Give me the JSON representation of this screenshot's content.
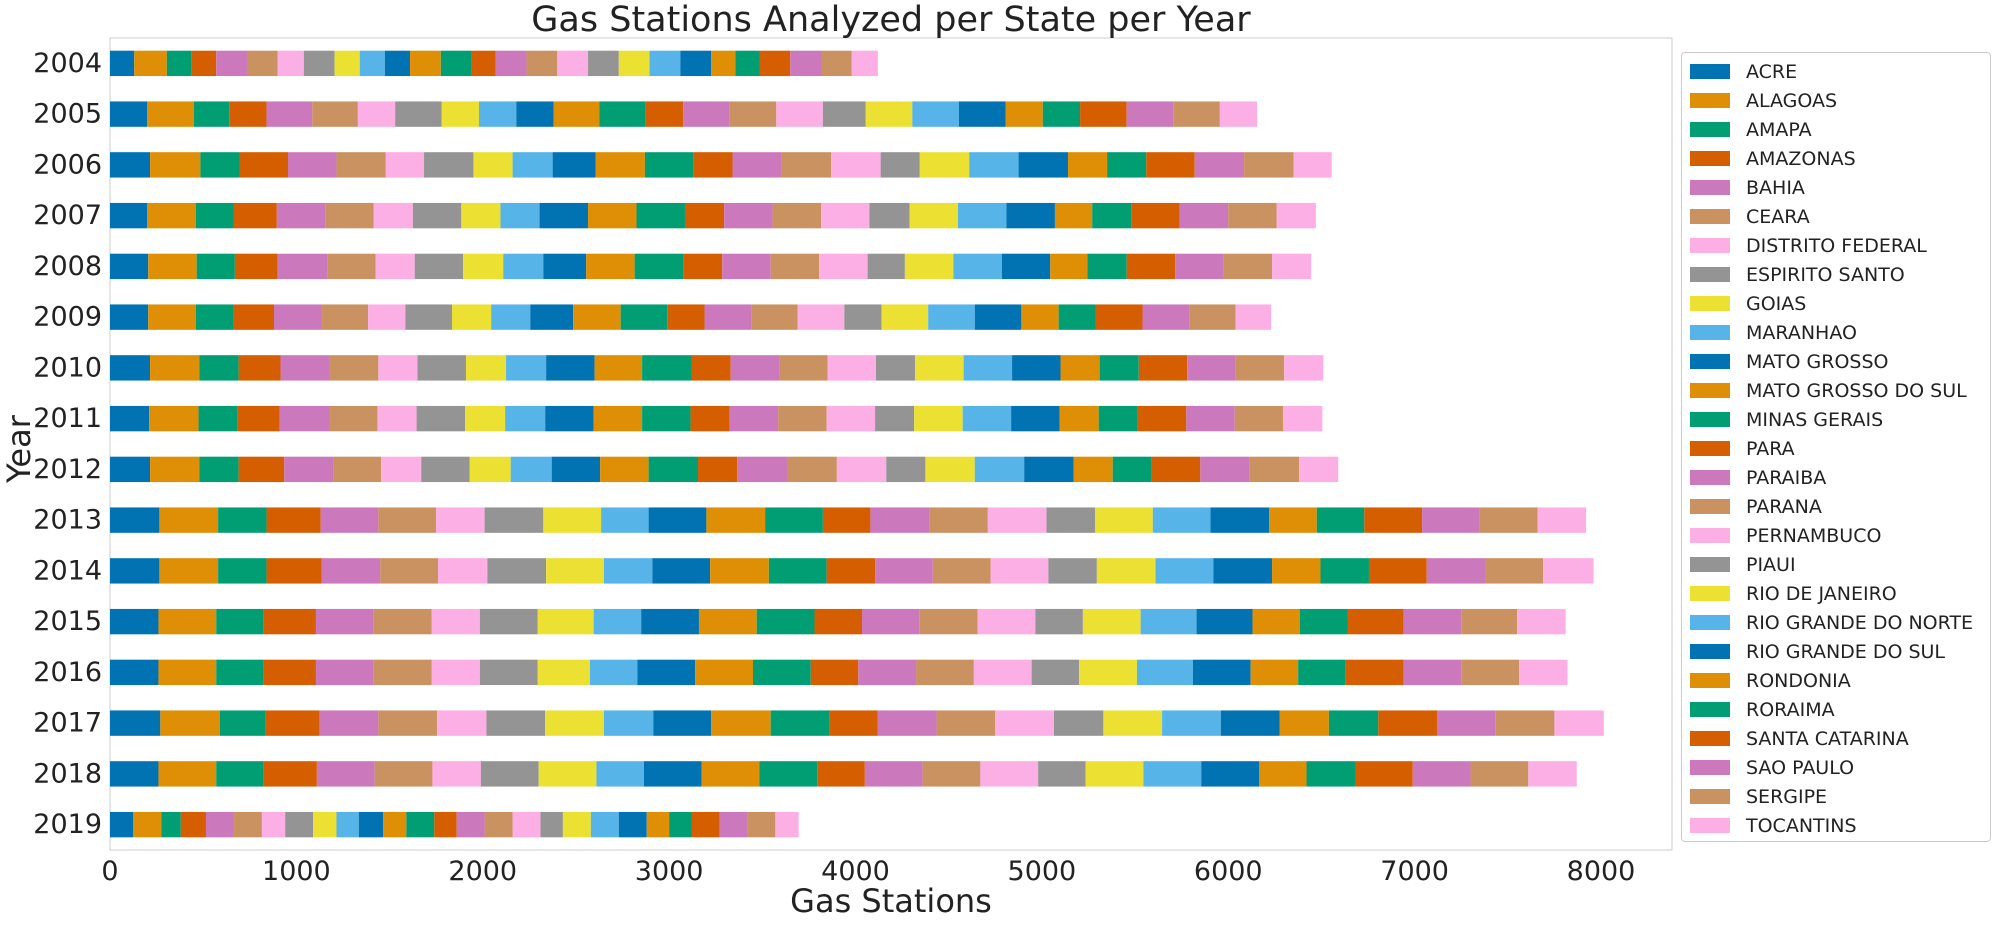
{
  "chart_data": {
    "type": "bar",
    "orientation": "horizontal",
    "stacked": true,
    "title": "Gas Stations Analyzed per State per Year",
    "xlabel": "Gas Stations",
    "ylabel": "Year",
    "xlim": [
      0,
      8400
    ],
    "x_ticks": [
      "0",
      "1000",
      "2000",
      "3000",
      "4000",
      "5000",
      "6000",
      "7000",
      "8000"
    ],
    "grid": false,
    "legend_position": "right",
    "categories": [
      "2004",
      "2005",
      "2006",
      "2007",
      "2008",
      "2009",
      "2010",
      "2011",
      "2012",
      "2013",
      "2014",
      "2015",
      "2016",
      "2017",
      "2018",
      "2019"
    ],
    "series": [
      {
        "name": "ACRE",
        "color": "#0173b2",
        "values": [
          130,
          200,
          215,
          200,
          205,
          205,
          215,
          210,
          215,
          265,
          265,
          260,
          260,
          270,
          260,
          125
        ]
      },
      {
        "name": "ALAGOAS",
        "color": "#de8f05",
        "values": [
          175,
          250,
          270,
          260,
          260,
          255,
          265,
          265,
          265,
          315,
          315,
          310,
          310,
          320,
          310,
          150
        ]
      },
      {
        "name": "AMAPA",
        "color": "#029e73",
        "values": [
          130,
          190,
          210,
          205,
          205,
          200,
          210,
          210,
          210,
          260,
          260,
          255,
          255,
          245,
          255,
          105
        ]
      },
      {
        "name": "AMAZONAS",
        "color": "#d55e00",
        "values": [
          135,
          200,
          260,
          230,
          230,
          220,
          225,
          225,
          245,
          290,
          295,
          280,
          280,
          290,
          285,
          135
        ]
      },
      {
        "name": "BAHIA",
        "color": "#cc78bc",
        "values": [
          165,
          245,
          260,
          260,
          265,
          255,
          265,
          265,
          265,
          310,
          315,
          310,
          310,
          315,
          310,
          150
        ]
      },
      {
        "name": "CEARA",
        "color": "#ca9161",
        "values": [
          165,
          245,
          265,
          260,
          260,
          250,
          260,
          260,
          255,
          310,
          310,
          310,
          310,
          315,
          310,
          150
        ]
      },
      {
        "name": "DISTRITO FEDERAL",
        "color": "#fbafe4",
        "values": [
          140,
          200,
          205,
          210,
          210,
          200,
          210,
          210,
          215,
          260,
          265,
          260,
          260,
          265,
          260,
          125
        ]
      },
      {
        "name": "ESPIRITO SANTO",
        "color": "#949494",
        "values": [
          165,
          250,
          265,
          260,
          260,
          250,
          260,
          260,
          260,
          315,
          315,
          310,
          310,
          315,
          310,
          150
        ]
      },
      {
        "name": "GOIAS",
        "color": "#ece133",
        "values": [
          135,
          200,
          210,
          210,
          215,
          210,
          215,
          215,
          220,
          310,
          310,
          300,
          280,
          315,
          310,
          125
        ]
      },
      {
        "name": "MARANHAO",
        "color": "#56b4e9",
        "values": [
          135,
          200,
          215,
          210,
          215,
          210,
          215,
          215,
          220,
          255,
          260,
          255,
          255,
          265,
          255,
          120
        ]
      },
      {
        "name": "MATO GROSSO",
        "color": "#0173b2",
        "values": [
          135,
          200,
          230,
          260,
          230,
          230,
          260,
          260,
          260,
          310,
          310,
          310,
          310,
          310,
          310,
          130
        ]
      },
      {
        "name": "MATO GROSSO DO SUL",
        "color": "#de8f05",
        "values": [
          165,
          245,
          265,
          260,
          260,
          255,
          255,
          260,
          260,
          315,
          315,
          310,
          310,
          320,
          310,
          125
        ]
      },
      {
        "name": "MINAS GERAIS",
        "color": "#029e73",
        "values": [
          165,
          250,
          260,
          260,
          260,
          250,
          265,
          260,
          265,
          310,
          310,
          310,
          310,
          315,
          310,
          150
        ]
      },
      {
        "name": "PARA",
        "color": "#d55e00",
        "values": [
          130,
          200,
          210,
          210,
          210,
          200,
          210,
          210,
          210,
          255,
          260,
          255,
          255,
          260,
          255,
          120
        ]
      },
      {
        "name": "PARAIBA",
        "color": "#cc78bc",
        "values": [
          165,
          250,
          265,
          260,
          260,
          250,
          260,
          260,
          270,
          315,
          310,
          310,
          310,
          315,
          310,
          150
        ]
      },
      {
        "name": "PARANA",
        "color": "#ca9161",
        "values": [
          165,
          250,
          265,
          260,
          260,
          250,
          260,
          260,
          265,
          315,
          310,
          310,
          310,
          315,
          310,
          150
        ]
      },
      {
        "name": "PERNAMBUCO",
        "color": "#fbafe4",
        "values": [
          165,
          250,
          265,
          260,
          260,
          250,
          260,
          260,
          265,
          315,
          310,
          310,
          310,
          315,
          310,
          150
        ]
      },
      {
        "name": "PIAUI",
        "color": "#949494",
        "values": [
          165,
          230,
          210,
          215,
          200,
          200,
          210,
          210,
          210,
          260,
          260,
          255,
          255,
          265,
          255,
          120
        ]
      },
      {
        "name": "RIO DE JANEIRO",
        "color": "#ece133",
        "values": [
          165,
          250,
          265,
          260,
          260,
          250,
          260,
          260,
          265,
          310,
          315,
          310,
          310,
          315,
          310,
          150
        ]
      },
      {
        "name": "RIO GRANDE DO NORTE",
        "color": "#56b4e9",
        "values": [
          165,
          250,
          265,
          260,
          260,
          250,
          260,
          260,
          265,
          310,
          310,
          300,
          300,
          315,
          310,
          150
        ]
      },
      {
        "name": "RIO GRANDE DO SUL",
        "color": "#0173b2",
        "values": [
          165,
          250,
          265,
          260,
          260,
          250,
          260,
          260,
          265,
          315,
          315,
          300,
          310,
          315,
          310,
          150
        ]
      },
      {
        "name": "RONDONIA",
        "color": "#de8f05",
        "values": [
          130,
          200,
          210,
          200,
          200,
          200,
          210,
          210,
          210,
          255,
          260,
          255,
          255,
          265,
          255,
          120
        ]
      },
      {
        "name": "RORAIMA",
        "color": "#029e73",
        "values": [
          130,
          200,
          210,
          210,
          210,
          200,
          210,
          210,
          210,
          255,
          260,
          255,
          255,
          265,
          260,
          120
        ]
      },
      {
        "name": "SANTA CATARINA",
        "color": "#d55e00",
        "values": [
          165,
          250,
          260,
          260,
          260,
          250,
          260,
          260,
          260,
          310,
          310,
          300,
          310,
          315,
          310,
          150
        ]
      },
      {
        "name": "SAO PAULO",
        "color": "#cc78bc",
        "values": [
          165,
          250,
          265,
          260,
          260,
          250,
          260,
          260,
          265,
          310,
          315,
          310,
          310,
          315,
          310,
          150
        ]
      },
      {
        "name": "SERGIPE",
        "color": "#ca9161",
        "values": [
          165,
          250,
          265,
          260,
          260,
          250,
          260,
          260,
          265,
          310,
          310,
          300,
          310,
          315,
          310,
          150
        ]
      },
      {
        "name": "TOCANTINS",
        "color": "#fbafe4",
        "values": [
          140,
          200,
          205,
          210,
          210,
          190,
          210,
          210,
          210,
          260,
          270,
          260,
          260,
          265,
          260,
          125
        ]
      }
    ]
  }
}
